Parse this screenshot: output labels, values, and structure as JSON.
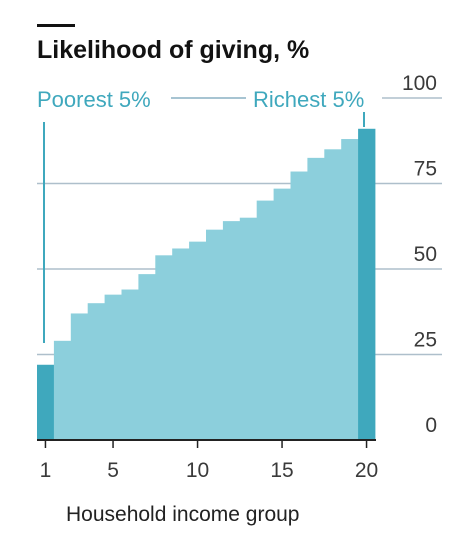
{
  "chart_data": {
    "type": "bar",
    "title": "Likelihood of giving, %",
    "xlabel": "Household income group",
    "ylabel": "",
    "categories": [
      1,
      2,
      3,
      4,
      5,
      6,
      7,
      8,
      9,
      10,
      11,
      12,
      13,
      14,
      15,
      16,
      17,
      18,
      19,
      20
    ],
    "values": [
      22,
      29,
      37,
      40,
      42.5,
      44,
      48.5,
      54,
      56,
      58,
      61.5,
      64,
      65,
      70,
      73.5,
      78.5,
      82.5,
      85,
      88,
      91
    ],
    "highlighted": [
      1,
      20
    ],
    "xticks": [
      1,
      5,
      10,
      15,
      20
    ],
    "yticks": [
      0,
      25,
      50,
      75,
      100
    ],
    "ylim": [
      0,
      100
    ],
    "grid": true,
    "colors": {
      "bar": "#8ccfdc",
      "highlight": "#3fa8bd",
      "grid": "#aebfcb"
    },
    "annotations": {
      "left": "Poorest 5%",
      "right": "Richest 5%"
    }
  }
}
